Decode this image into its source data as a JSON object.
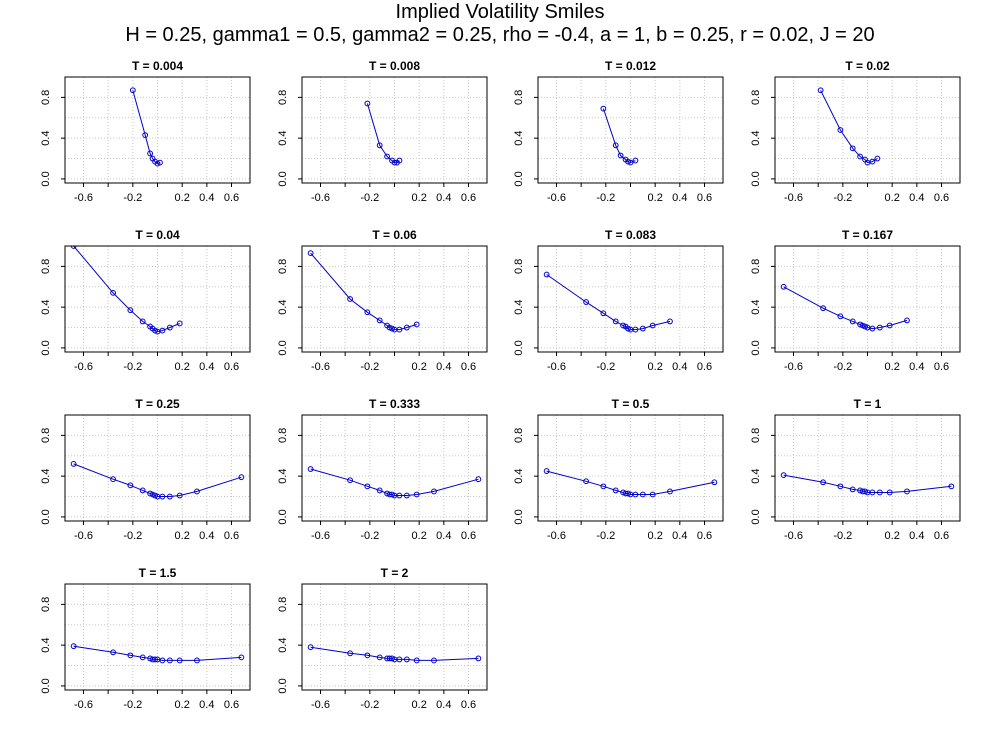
{
  "title": "Implied Volatility Smiles",
  "subtitle": "H = 0.25, gamma1 = 0.5, gamma2 = 0.25, rho = -0.4, a = 1, b = 0.25, r = 0.02, J = 20",
  "colors": {
    "series": "#0000cc",
    "grid": "#c8c8c8",
    "axis": "#000000"
  },
  "chart_data": [
    {
      "type": "line",
      "title": "T = 0.004",
      "xlim": [
        -0.75,
        0.75
      ],
      "ylim": [
        0,
        1
      ],
      "xticks": [
        -0.6,
        -0.2,
        0.2,
        0.4,
        0.6
      ],
      "yticks": [
        0.0,
        0.4,
        0.8
      ],
      "x": [
        -0.2,
        -0.1,
        -0.06,
        -0.04,
        -0.02,
        0.0,
        0.02
      ],
      "y": [
        0.87,
        0.43,
        0.25,
        0.2,
        0.17,
        0.15,
        0.16
      ]
    },
    {
      "type": "line",
      "title": "T = 0.008",
      "xlim": [
        -0.75,
        0.75
      ],
      "ylim": [
        0,
        1
      ],
      "xticks": [
        -0.6,
        -0.2,
        0.2,
        0.4,
        0.6
      ],
      "yticks": [
        0.0,
        0.4,
        0.8
      ],
      "x": [
        -0.22,
        -0.12,
        -0.06,
        -0.02,
        0.0,
        0.02,
        0.04
      ],
      "y": [
        0.74,
        0.33,
        0.22,
        0.18,
        0.16,
        0.16,
        0.18
      ]
    },
    {
      "type": "line",
      "title": "T = 0.012",
      "xlim": [
        -0.75,
        0.75
      ],
      "ylim": [
        0,
        1
      ],
      "xticks": [
        -0.6,
        -0.2,
        0.2,
        0.4,
        0.6
      ],
      "yticks": [
        0.0,
        0.4,
        0.8
      ],
      "x": [
        -0.22,
        -0.12,
        -0.08,
        -0.04,
        -0.02,
        0.0,
        0.04
      ],
      "y": [
        0.69,
        0.33,
        0.23,
        0.19,
        0.17,
        0.16,
        0.18
      ]
    },
    {
      "type": "line",
      "title": "T = 0.02",
      "xlim": [
        -0.75,
        0.75
      ],
      "ylim": [
        0,
        1
      ],
      "xticks": [
        -0.6,
        -0.2,
        0.2,
        0.4,
        0.6
      ],
      "yticks": [
        0.0,
        0.4,
        0.8
      ],
      "x": [
        -0.38,
        -0.22,
        -0.12,
        -0.06,
        -0.02,
        0.0,
        0.04,
        0.08
      ],
      "y": [
        0.87,
        0.48,
        0.3,
        0.22,
        0.19,
        0.16,
        0.17,
        0.2
      ]
    },
    {
      "type": "line",
      "title": "T = 0.04",
      "xlim": [
        -0.75,
        0.75
      ],
      "ylim": [
        0,
        1
      ],
      "xticks": [
        -0.6,
        -0.2,
        0.2,
        0.4,
        0.6
      ],
      "yticks": [
        0.0,
        0.4,
        0.8
      ],
      "x": [
        -0.68,
        -0.36,
        -0.22,
        -0.12,
        -0.06,
        -0.04,
        -0.02,
        0.0,
        0.04,
        0.1,
        0.18
      ],
      "y": [
        1.0,
        0.54,
        0.37,
        0.26,
        0.21,
        0.19,
        0.17,
        0.16,
        0.17,
        0.2,
        0.24
      ]
    },
    {
      "type": "line",
      "title": "T = 0.06",
      "xlim": [
        -0.75,
        0.75
      ],
      "ylim": [
        0,
        1
      ],
      "xticks": [
        -0.6,
        -0.2,
        0.2,
        0.4,
        0.6
      ],
      "yticks": [
        0.0,
        0.4,
        0.8
      ],
      "x": [
        -0.68,
        -0.36,
        -0.22,
        -0.12,
        -0.06,
        -0.04,
        -0.02,
        0.0,
        0.04,
        0.1,
        0.18
      ],
      "y": [
        0.93,
        0.48,
        0.35,
        0.27,
        0.22,
        0.2,
        0.19,
        0.18,
        0.18,
        0.2,
        0.23
      ]
    },
    {
      "type": "line",
      "title": "T = 0.083",
      "xlim": [
        -0.75,
        0.75
      ],
      "ylim": [
        0,
        1
      ],
      "xticks": [
        -0.6,
        -0.2,
        0.2,
        0.4,
        0.6
      ],
      "yticks": [
        0.0,
        0.4,
        0.8
      ],
      "x": [
        -0.68,
        -0.36,
        -0.22,
        -0.12,
        -0.06,
        -0.04,
        -0.02,
        0.0,
        0.04,
        0.1,
        0.18,
        0.32
      ],
      "y": [
        0.72,
        0.45,
        0.34,
        0.26,
        0.22,
        0.21,
        0.19,
        0.18,
        0.18,
        0.19,
        0.22,
        0.26
      ]
    },
    {
      "type": "line",
      "title": "T = 0.167",
      "xlim": [
        -0.75,
        0.75
      ],
      "ylim": [
        0,
        1
      ],
      "xticks": [
        -0.6,
        -0.2,
        0.2,
        0.4,
        0.6
      ],
      "yticks": [
        0.0,
        0.4,
        0.8
      ],
      "x": [
        -0.68,
        -0.36,
        -0.22,
        -0.12,
        -0.06,
        -0.04,
        -0.02,
        0.0,
        0.04,
        0.1,
        0.18,
        0.32
      ],
      "y": [
        0.6,
        0.39,
        0.31,
        0.26,
        0.23,
        0.22,
        0.21,
        0.2,
        0.19,
        0.2,
        0.22,
        0.27
      ]
    },
    {
      "type": "line",
      "title": "T = 0.25",
      "xlim": [
        -0.75,
        0.75
      ],
      "ylim": [
        0,
        1
      ],
      "xticks": [
        -0.6,
        -0.2,
        0.2,
        0.4,
        0.6
      ],
      "yticks": [
        0.0,
        0.4,
        0.8
      ],
      "x": [
        -0.68,
        -0.36,
        -0.22,
        -0.12,
        -0.06,
        -0.04,
        -0.02,
        0.0,
        0.04,
        0.1,
        0.18,
        0.32,
        0.68
      ],
      "y": [
        0.52,
        0.37,
        0.31,
        0.26,
        0.23,
        0.22,
        0.21,
        0.2,
        0.2,
        0.2,
        0.21,
        0.25,
        0.39
      ]
    },
    {
      "type": "line",
      "title": "T = 0.333",
      "xlim": [
        -0.75,
        0.75
      ],
      "ylim": [
        0,
        1
      ],
      "xticks": [
        -0.6,
        -0.2,
        0.2,
        0.4,
        0.6
      ],
      "yticks": [
        0.0,
        0.4,
        0.8
      ],
      "x": [
        -0.68,
        -0.36,
        -0.22,
        -0.12,
        -0.06,
        -0.04,
        -0.02,
        0.0,
        0.04,
        0.1,
        0.18,
        0.32,
        0.68
      ],
      "y": [
        0.47,
        0.36,
        0.3,
        0.26,
        0.23,
        0.22,
        0.22,
        0.21,
        0.21,
        0.21,
        0.22,
        0.25,
        0.37
      ]
    },
    {
      "type": "line",
      "title": "T = 0.5",
      "xlim": [
        -0.75,
        0.75
      ],
      "ylim": [
        0,
        1
      ],
      "xticks": [
        -0.6,
        -0.2,
        0.2,
        0.4,
        0.6
      ],
      "yticks": [
        0.0,
        0.4,
        0.8
      ],
      "x": [
        -0.68,
        -0.36,
        -0.22,
        -0.12,
        -0.06,
        -0.04,
        -0.02,
        0.0,
        0.04,
        0.1,
        0.18,
        0.32,
        0.68
      ],
      "y": [
        0.45,
        0.35,
        0.3,
        0.26,
        0.24,
        0.23,
        0.23,
        0.22,
        0.22,
        0.22,
        0.22,
        0.25,
        0.34
      ]
    },
    {
      "type": "line",
      "title": "T = 1",
      "xlim": [
        -0.75,
        0.75
      ],
      "ylim": [
        0,
        1
      ],
      "xticks": [
        -0.6,
        -0.2,
        0.2,
        0.4,
        0.6
      ],
      "yticks": [
        0.0,
        0.4,
        0.8
      ],
      "x": [
        -0.68,
        -0.36,
        -0.22,
        -0.12,
        -0.06,
        -0.04,
        -0.02,
        0.0,
        0.04,
        0.1,
        0.18,
        0.32,
        0.68
      ],
      "y": [
        0.41,
        0.34,
        0.3,
        0.27,
        0.26,
        0.25,
        0.25,
        0.24,
        0.24,
        0.24,
        0.24,
        0.25,
        0.3
      ]
    },
    {
      "type": "line",
      "title": "T = 1.5",
      "xlim": [
        -0.75,
        0.75
      ],
      "ylim": [
        0,
        1
      ],
      "xticks": [
        -0.6,
        -0.2,
        0.2,
        0.4,
        0.6
      ],
      "yticks": [
        0.0,
        0.4,
        0.8
      ],
      "x": [
        -0.68,
        -0.36,
        -0.22,
        -0.12,
        -0.06,
        -0.04,
        -0.02,
        0.0,
        0.04,
        0.1,
        0.18,
        0.32,
        0.68
      ],
      "y": [
        0.39,
        0.33,
        0.3,
        0.28,
        0.27,
        0.26,
        0.26,
        0.26,
        0.25,
        0.25,
        0.25,
        0.25,
        0.28
      ]
    },
    {
      "type": "line",
      "title": "T = 2",
      "xlim": [
        -0.75,
        0.75
      ],
      "ylim": [
        0,
        1
      ],
      "xticks": [
        -0.6,
        -0.2,
        0.2,
        0.4,
        0.6
      ],
      "yticks": [
        0.0,
        0.4,
        0.8
      ],
      "x": [
        -0.68,
        -0.36,
        -0.22,
        -0.12,
        -0.06,
        -0.04,
        -0.02,
        0.0,
        0.04,
        0.1,
        0.18,
        0.32,
        0.68
      ],
      "y": [
        0.38,
        0.32,
        0.3,
        0.28,
        0.27,
        0.27,
        0.27,
        0.26,
        0.26,
        0.26,
        0.25,
        0.25,
        0.27
      ]
    }
  ]
}
